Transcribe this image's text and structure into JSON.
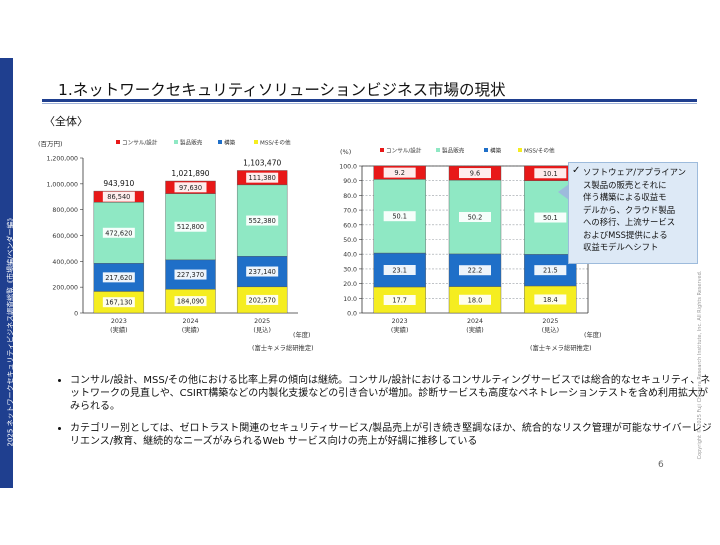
{
  "header": {
    "side_label": "2025 ネットワークセキュリティビジネス調査総覧《市場編/ベンダー編》",
    "title": "1.ネットワークセキュリティソリューションビジネス市場の現状",
    "section": "〈全体〉",
    "copyright": "Copyright © 2025 Fuji Chimera Research Institute, Inc. All Rights Reserved."
  },
  "colors": {
    "consulting": "#e81818",
    "product": "#8fe8c4",
    "construction": "#1f6fc8",
    "mss": "#f5ed20",
    "accent": "#1f3f8f"
  },
  "chart_data": [
    {
      "type": "bar",
      "stacked": true,
      "unit_label": "(百万円)",
      "categories": [
        "2023\n(実績)",
        "2024\n(実績)",
        "2025\n(見込)"
      ],
      "category_years": [
        "2023",
        "2024",
        "2025"
      ],
      "category_notes": [
        "(実績)",
        "(実績)",
        "(見込)"
      ],
      "series": [
        {
          "name": "MSS/その他",
          "values": [
            167130,
            184090,
            202570
          ]
        },
        {
          "name": "構築",
          "values": [
            217620,
            227370,
            237140
          ]
        },
        {
          "name": "製品販売",
          "values": [
            472620,
            512800,
            552380
          ]
        },
        {
          "name": "コンサル/設計",
          "values": [
            86540,
            97630,
            111380
          ]
        }
      ],
      "value_labels": [
        [
          "167,130",
          "184,090",
          "202,570"
        ],
        [
          "217,620",
          "227,370",
          "237,140"
        ],
        [
          "472,620",
          "512,800",
          "552,380"
        ],
        [
          "86,540",
          "97,630",
          "111,380"
        ]
      ],
      "totals": [
        943910,
        1021890,
        1103470
      ],
      "total_labels": [
        "943,910",
        "1,021,890",
        "1,103,470"
      ],
      "ylim": [
        0,
        1200000
      ],
      "yticks": [
        "0",
        "200,000",
        "400,000",
        "600,000",
        "800,000",
        "1,000,000",
        "1,200,000"
      ],
      "x_unit": "(年度)",
      "source": "(富士キメラ総研推定)",
      "legend": [
        "コンサル/設計",
        "製品販売",
        "構築",
        "MSS/その他"
      ]
    },
    {
      "type": "bar",
      "stacked": true,
      "unit_label": "(%)",
      "categories": [
        "2023\n(実績)",
        "2024\n(実績)",
        "2025\n(見込)"
      ],
      "category_years": [
        "2023",
        "2024",
        "2025"
      ],
      "category_notes": [
        "(実績)",
        "(実績)",
        "(見込)"
      ],
      "series": [
        {
          "name": "MSS/その他",
          "values": [
            17.7,
            18.0,
            18.4
          ]
        },
        {
          "name": "構築",
          "values": [
            23.1,
            22.2,
            21.5
          ]
        },
        {
          "name": "製品販売",
          "values": [
            50.1,
            50.2,
            50.1
          ]
        },
        {
          "name": "コンサル/設計",
          "values": [
            9.2,
            9.6,
            10.1
          ]
        }
      ],
      "value_labels": [
        [
          "17.7",
          "18.0",
          "18.4"
        ],
        [
          "23.1",
          "22.2",
          "21.5"
        ],
        [
          "50.1",
          "50.2",
          "50.1"
        ],
        [
          "9.2",
          "9.6",
          "10.1"
        ]
      ],
      "ylim": [
        0,
        100
      ],
      "yticks": [
        "0.0",
        "10.0",
        "20.0",
        "30.0",
        "40.0",
        "50.0",
        "60.0",
        "70.0",
        "80.0",
        "90.0",
        "100.0"
      ],
      "x_unit": "(年度)",
      "source": "(富士キメラ総研推定)",
      "legend": [
        "コンサル/設計",
        "製品販売",
        "構築",
        "MSS/その他"
      ]
    }
  ],
  "note": {
    "check": "✓",
    "lines": [
      "ソフトウェア/アプライアン",
      "ス製品の販売とそれに",
      "伴う構築による収益モ",
      "デルから、クラウド製品",
      "への移行、上流サービス",
      "およびMSS提供による",
      "収益モデルへシフト"
    ]
  },
  "bullets": [
    "コンサル/設計、MSS/その他における比率上昇の傾向は継続。コンサル/設計におけるコンサルティングサービスでは総合的なセキュリティ、ネットワークの見直しや、CSIRT構築などの内製化支援などの引き合いが増加。診断サービスも高度なペネトレーションテストを含め利用拡大がみられる。",
    "カテゴリー別としては、ゼロトラスト関連のセキュリティサービス/製品売上が引き続き堅調なほか、統合的なリスク管理が可能なサイバーレジリエンス/教育、継続的なニーズがみられるWeb サービス向けの売上が好調に推移している"
  ],
  "page_number": "6"
}
